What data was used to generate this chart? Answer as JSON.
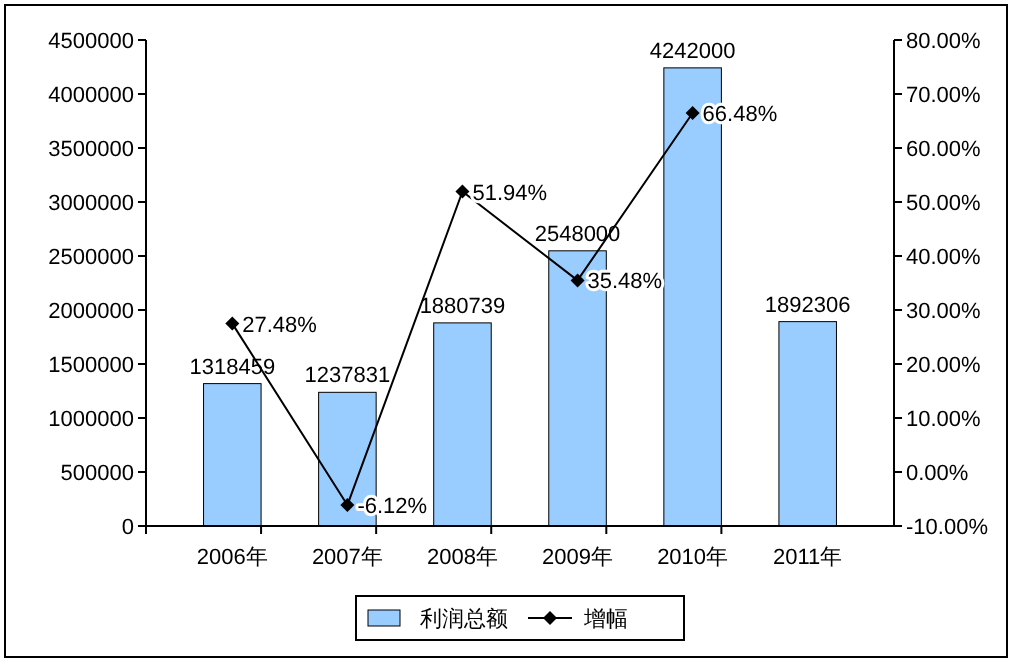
{
  "chart_data": {
    "type": "bar",
    "categories": [
      "2006年",
      "2007年",
      "2008年",
      "2009年",
      "2010年",
      "2011年"
    ],
    "series": [
      {
        "name": "利润总额",
        "color": "#99ccff",
        "values": [
          1318459,
          1237831,
          1880739,
          2548000,
          4242000,
          1892306
        ],
        "value_labels": [
          "1318459",
          "1237831",
          "1880739",
          "2548000",
          "4242000",
          "1892306"
        ]
      },
      {
        "name": "增幅",
        "type": "line",
        "axis": "y2",
        "color": "#000000",
        "marker": "diamond",
        "values": [
          27.48,
          -6.12,
          51.94,
          35.48,
          66.48,
          null
        ],
        "value_labels": [
          "27.48%",
          "-6.12%",
          "51.94%",
          "35.48%",
          "66.48%",
          null
        ]
      }
    ],
    "ylim": [
      0,
      4500000
    ],
    "yticks": [
      0,
      500000,
      1000000,
      1500000,
      2000000,
      2500000,
      3000000,
      3500000,
      4000000,
      4500000
    ],
    "y2lim": [
      -10,
      80
    ],
    "y2ticks": [
      {
        "value": -10,
        "label": "-10.00%"
      },
      {
        "value": 0,
        "label": "0.00%"
      },
      {
        "value": 10,
        "label": "10.00%"
      },
      {
        "value": 20,
        "label": "20.00%"
      },
      {
        "value": 30,
        "label": "30.00%"
      },
      {
        "value": 40,
        "label": "40.00%"
      },
      {
        "value": 50,
        "label": "50.00%"
      },
      {
        "value": 60,
        "label": "60.00%"
      },
      {
        "value": 70,
        "label": "70.00%"
      },
      {
        "value": 80,
        "label": "80.00%"
      }
    ],
    "legend": "bottom",
    "grid": false
  }
}
